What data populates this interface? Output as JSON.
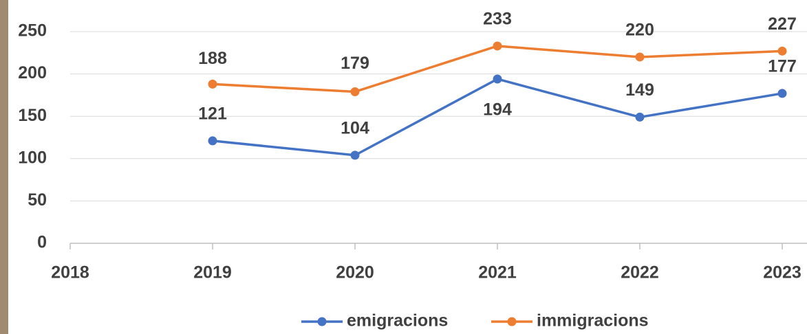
{
  "chart_data": {
    "type": "line",
    "x": [
      2019,
      2020,
      2021,
      2022,
      2023
    ],
    "series": [
      {
        "name": "emigracions",
        "color": "#4472c4",
        "values": [
          121,
          104,
          194,
          149,
          177
        ]
      },
      {
        "name": "immigracions",
        "color": "#ed7d31",
        "values": [
          188,
          179,
          233,
          220,
          227
        ]
      }
    ],
    "xlim": [
      2018,
      2023
    ],
    "xticks": [
      2018,
      2019,
      2020,
      2021,
      2022,
      2023
    ],
    "ylim": [
      0,
      250
    ],
    "yticks": [
      0,
      50,
      100,
      150,
      200,
      250
    ],
    "grid": true,
    "legend": "bottom"
  }
}
